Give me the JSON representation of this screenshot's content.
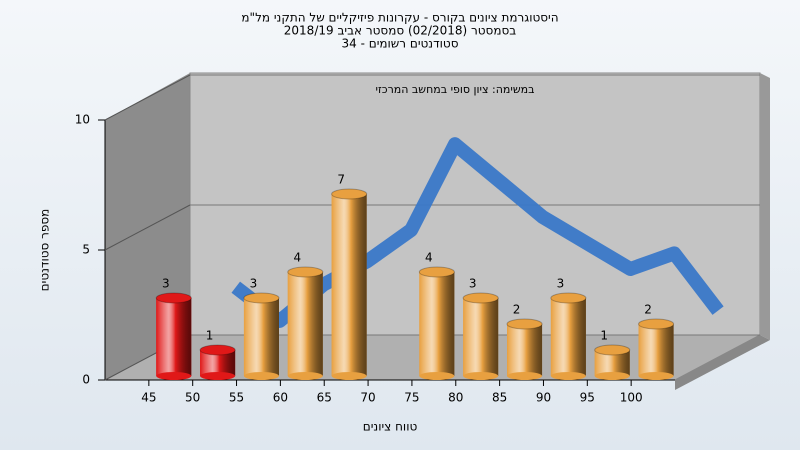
{
  "chart_data": {
    "type": "histogram",
    "title": [
      "היסטוגרמת ציונים בקורס - עקרונות פיזיקליים של התקני מל\"מ",
      "בסמסטר (02/2018) סמסטר אביב 2018/19",
      "סטודנטים רשומים - 34"
    ],
    "subtitle": "במשימה: ציון סופי במחשב המרכזי",
    "x_label": "טווח ציונים",
    "y_label": "מספר סטודנטים",
    "bins": [
      45,
      50,
      55,
      60,
      65,
      70,
      75,
      80,
      85,
      90,
      95,
      100,
      105
    ],
    "values": [
      3,
      1,
      3,
      4,
      7,
      0,
      4,
      3,
      2,
      3,
      1,
      2
    ],
    "colors": [
      "#e01818",
      "#e01818",
      "#e8a040",
      "#e8a040",
      "#e8a040",
      "#e8a040",
      "#e8a040",
      "#e8a040",
      "#e8a040",
      "#e8a040",
      "#e8a040",
      "#e8a040"
    ],
    "curve": {
      "color": "#3a78c8",
      "x": [
        47.5,
        52.5,
        57.5,
        62.5,
        67.5,
        72.5,
        77.5,
        82.5,
        87.5,
        92.5,
        97.5,
        102.5
      ],
      "values": [
        2.3,
        1.0,
        2.4,
        3.3,
        4.5,
        7.8,
        6.4,
        5.0,
        4.0,
        3.0,
        3.6,
        1.4
      ]
    },
    "xlim": [
      40,
      105
    ],
    "xticks": [
      45,
      50,
      55,
      60,
      65,
      70,
      75,
      80,
      85,
      90,
      95,
      100
    ],
    "ylim": [
      0,
      10
    ],
    "yticks": [
      0,
      5,
      10
    ],
    "grid": true
  }
}
